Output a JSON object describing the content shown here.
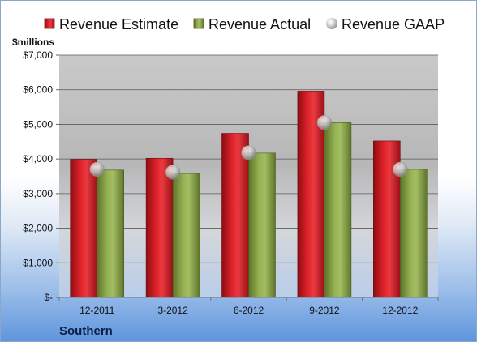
{
  "chart_data": {
    "type": "bar",
    "company": "Southern",
    "unit_label": "$millions",
    "categories": [
      "12-2011",
      "3-2012",
      "6-2012",
      "9-2012",
      "12-2012"
    ],
    "series": [
      {
        "name": "Revenue Estimate",
        "kind": "bar",
        "color": "#c8161d",
        "values": [
          3990,
          4020,
          4740,
          5960,
          4520
        ]
      },
      {
        "name": "Revenue Actual",
        "kind": "bar",
        "color": "#7f9a3e",
        "values": [
          3680,
          3580,
          4170,
          5050,
          3700
        ]
      },
      {
        "name": "Revenue GAAP",
        "kind": "marker",
        "color": "#c9c9c9",
        "values": [
          3700,
          3620,
          4180,
          5050,
          3700
        ]
      }
    ],
    "ylim": [
      0,
      7000
    ],
    "yticks": [
      {
        "value": 0,
        "label": "$-"
      },
      {
        "value": 1000,
        "label": "$1,000"
      },
      {
        "value": 2000,
        "label": "$2,000"
      },
      {
        "value": 3000,
        "label": "$3,000"
      },
      {
        "value": 4000,
        "label": "$4,000"
      },
      {
        "value": 5000,
        "label": "$5,000"
      },
      {
        "value": 6000,
        "label": "$6,000"
      },
      {
        "value": 7000,
        "label": "$7,000"
      }
    ],
    "grid": true,
    "legend_position": "top"
  }
}
